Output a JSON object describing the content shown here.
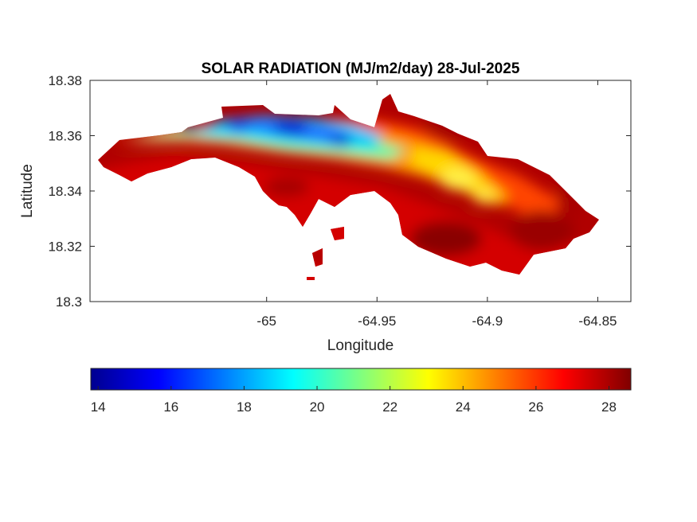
{
  "chart_data": {
    "type": "heatmap",
    "title": "SOLAR RADIATION (MJ/m2/day) 28-Jul-2025",
    "xlabel": "Longitude",
    "ylabel": "Latitude",
    "xlim": [
      -65.08,
      -64.835
    ],
    "ylim": [
      18.3,
      18.38
    ],
    "xticks": [
      -65,
      -64.95,
      -64.9,
      -64.85
    ],
    "xtick_labels": [
      "-65",
      "-64.95",
      "-64.9",
      "-64.85"
    ],
    "yticks": [
      18.3,
      18.32,
      18.34,
      18.36,
      18.38
    ],
    "ytick_labels": [
      "18.3",
      "18.32",
      "18.34",
      "18.36",
      "18.38"
    ],
    "colormap": "jet",
    "color_range": [
      13.8,
      28.6
    ],
    "colorbar": {
      "placement": "bottom",
      "ticks": [
        14,
        16,
        18,
        20,
        22,
        24,
        26,
        28
      ],
      "tick_labels": [
        "14",
        "16",
        "18",
        "20",
        "22",
        "24",
        "26",
        "28"
      ]
    },
    "grid": false
  }
}
